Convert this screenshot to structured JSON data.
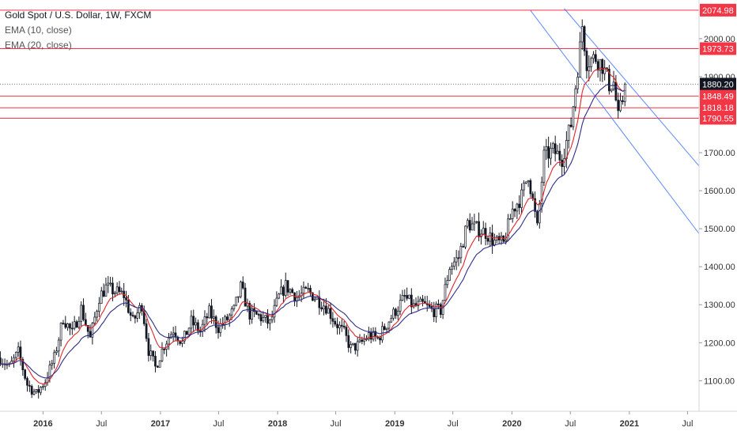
{
  "chart_data": {
    "type": "candlestick",
    "title": "Gold Spot / U.S. Dollar, 1W, FXCM",
    "indicators": [
      "EMA (10, close)",
      "EMA (20, close)"
    ],
    "indicator_colors": {
      "ema10": "#e0262a",
      "ema20": "#2c2c8a"
    },
    "x_tick_labels": [
      "2016",
      "Jul",
      "2017",
      "Jul",
      "2018",
      "Jul",
      "2019",
      "Jul",
      "2020",
      "Jul",
      "2021",
      "Jul"
    ],
    "x_tick_dates": [
      "2016-01-01",
      "2016-07-01",
      "2017-01-01",
      "2017-07-01",
      "2018-01-01",
      "2018-07-01",
      "2019-01-01",
      "2019-07-01",
      "2020-01-01",
      "2020-07-01",
      "2021-01-01",
      "2021-07-01"
    ],
    "y_tick_labels": [
      "1100.00",
      "1200.00",
      "1300.00",
      "1400.00",
      "1500.00",
      "1600.00",
      "1700.00",
      "1800.00",
      "1900.00",
      "2000.00"
    ],
    "ylim": [
      1030,
      2085
    ],
    "xlim": [
      "2015-08-20",
      "2021-08-06"
    ],
    "price_levels": [
      {
        "label": "2074.98",
        "value": 2074.98,
        "style": "red"
      },
      {
        "label": "1973.73",
        "value": 1973.73,
        "style": "red"
      },
      {
        "label": "1880.20",
        "value": 1880.2,
        "style": "last"
      },
      {
        "label": "1848.49",
        "value": 1848.49,
        "style": "red"
      },
      {
        "label": "1818.18",
        "value": 1818.18,
        "style": "red"
      },
      {
        "label": "1790.55",
        "value": 1790.55,
        "style": "red"
      }
    ],
    "horizontal_lines": [
      2074.98,
      1973.73,
      1848.49,
      1818.18,
      1790.55
    ],
    "last_price": 1880.2,
    "trend_channel": [
      {
        "from": [
          "2020-06-12",
          2079
        ],
        "to": [
          "2021-08-06",
          1665
        ]
      },
      {
        "from": [
          "2020-02-28",
          2074
        ],
        "to": [
          "2021-08-06",
          1487
        ]
      }
    ],
    "close_series": [
      [
        "2015-08-21",
        1160
      ],
      [
        "2015-09-18",
        1135
      ],
      [
        "2015-10-16",
        1175
      ],
      [
        "2015-11-13",
        1090
      ],
      [
        "2015-12-11",
        1065
      ],
      [
        "2016-01-08",
        1100
      ],
      [
        "2016-02-05",
        1160
      ],
      [
        "2016-03-04",
        1265
      ],
      [
        "2016-04-01",
        1225
      ],
      [
        "2016-04-29",
        1290
      ],
      [
        "2016-05-27",
        1210
      ],
      [
        "2016-06-24",
        1320
      ],
      [
        "2016-07-15",
        1345
      ],
      [
        "2016-08-12",
        1335
      ],
      [
        "2016-09-09",
        1325
      ],
      [
        "2016-10-07",
        1255
      ],
      [
        "2016-11-04",
        1300
      ],
      [
        "2016-11-25",
        1180
      ],
      [
        "2016-12-16",
        1135
      ],
      [
        "2017-01-13",
        1195
      ],
      [
        "2017-02-10",
        1235
      ],
      [
        "2017-03-10",
        1200
      ],
      [
        "2017-04-07",
        1255
      ],
      [
        "2017-05-05",
        1230
      ],
      [
        "2017-06-02",
        1280
      ],
      [
        "2017-06-30",
        1240
      ],
      [
        "2017-07-21",
        1255
      ],
      [
        "2017-08-18",
        1285
      ],
      [
        "2017-09-08",
        1345
      ],
      [
        "2017-10-06",
        1275
      ],
      [
        "2017-11-03",
        1270
      ],
      [
        "2017-12-08",
        1250
      ],
      [
        "2018-01-05",
        1320
      ],
      [
        "2018-01-26",
        1350
      ],
      [
        "2018-03-02",
        1320
      ],
      [
        "2018-04-06",
        1335
      ],
      [
        "2018-05-04",
        1315
      ],
      [
        "2018-06-01",
        1295
      ],
      [
        "2018-06-29",
        1255
      ],
      [
        "2018-07-27",
        1225
      ],
      [
        "2018-08-17",
        1185
      ],
      [
        "2018-09-14",
        1195
      ],
      [
        "2018-10-12",
        1220
      ],
      [
        "2018-11-09",
        1210
      ],
      [
        "2018-12-07",
        1250
      ],
      [
        "2019-01-04",
        1285
      ],
      [
        "2019-02-01",
        1320
      ],
      [
        "2019-03-01",
        1295
      ],
      [
        "2019-03-29",
        1300
      ],
      [
        "2019-04-26",
        1285
      ],
      [
        "2019-05-24",
        1285
      ],
      [
        "2019-06-21",
        1400
      ],
      [
        "2019-07-19",
        1425
      ],
      [
        "2019-08-16",
        1515
      ],
      [
        "2019-09-13",
        1500
      ],
      [
        "2019-10-11",
        1490
      ],
      [
        "2019-11-08",
        1465
      ],
      [
        "2019-12-06",
        1460
      ],
      [
        "2020-01-03",
        1550
      ],
      [
        "2020-01-31",
        1585
      ],
      [
        "2020-02-21",
        1645
      ],
      [
        "2020-03-20",
        1500
      ],
      [
        "2020-04-10",
        1690
      ],
      [
        "2020-05-08",
        1705
      ],
      [
        "2020-06-05",
        1685
      ],
      [
        "2020-07-03",
        1775
      ],
      [
        "2020-07-31",
        1975
      ],
      [
        "2020-08-07",
        2035
      ],
      [
        "2020-08-21",
        1940
      ],
      [
        "2020-09-18",
        1950
      ],
      [
        "2020-10-09",
        1930
      ],
      [
        "2020-10-30",
        1880
      ],
      [
        "2020-11-13",
        1885
      ],
      [
        "2020-11-27",
        1790
      ],
      [
        "2020-12-11",
        1840
      ],
      [
        "2020-12-18",
        1880
      ]
    ]
  }
}
